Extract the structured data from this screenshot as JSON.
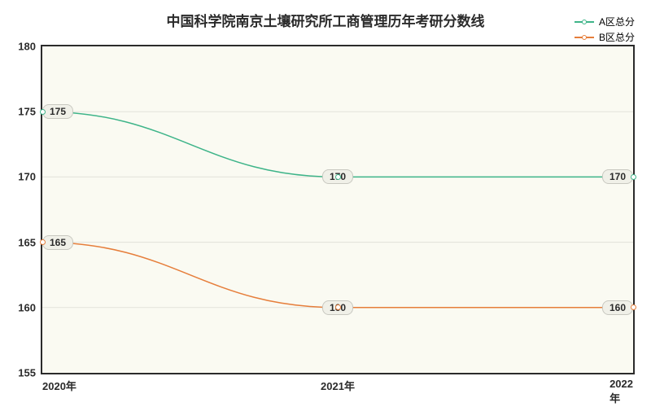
{
  "chart": {
    "type": "line",
    "title": "中国科学院南京土壤研究所工商管理历年考研分数线",
    "title_fontsize": 17,
    "title_color": "#2b2b2b",
    "background_color": "#ffffff",
    "plot_background_color": "#fafaf2",
    "border_color": "#2b2b2b",
    "grid_color": "#e2e2da",
    "xlim": [
      2020,
      2022
    ],
    "ylim": [
      155,
      180
    ],
    "ytick_step": 5,
    "yticks": [
      155,
      160,
      165,
      170,
      175,
      180
    ],
    "xticks": [
      2020,
      2021,
      2022
    ],
    "xtick_labels": [
      "2020年",
      "2021年",
      "2022年"
    ],
    "tick_fontsize": 13,
    "tick_color": "#2b2b2b",
    "point_label_fontsize": 12,
    "point_label_bg": "#f0f0e8",
    "point_label_border": "#c8c8c0",
    "line_width": 1.5,
    "marker_size": 7,
    "legend": {
      "position": "top-right",
      "fontsize": 12,
      "items": [
        {
          "label": "A区总分",
          "color": "#3eb489"
        },
        {
          "label": "B区总分",
          "color": "#e67e3b"
        }
      ]
    },
    "series": [
      {
        "name": "A区总分",
        "color": "#3eb489",
        "x": [
          2020,
          2021,
          2022
        ],
        "y": [
          175,
          170,
          170
        ],
        "labels": [
          "175",
          "170",
          "170"
        ],
        "smooth": true
      },
      {
        "name": "B区总分",
        "color": "#e67e3b",
        "x": [
          2020,
          2021,
          2022
        ],
        "y": [
          165,
          160,
          160
        ],
        "labels": [
          "165",
          "160",
          "160"
        ],
        "smooth": true
      }
    ]
  }
}
